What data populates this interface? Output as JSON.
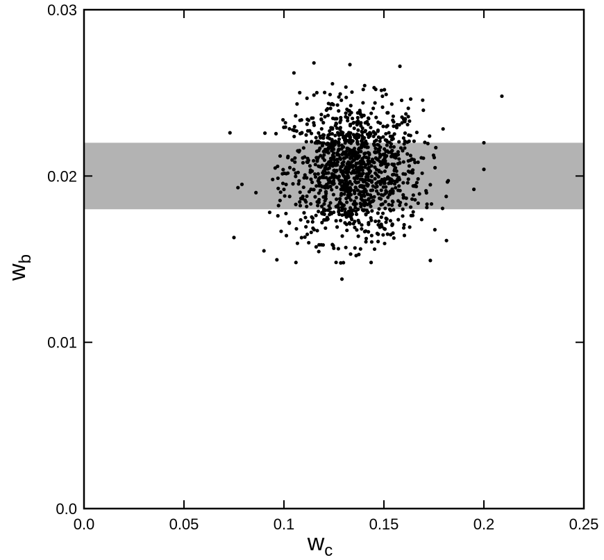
{
  "chart_data": {
    "type": "scatter",
    "title": "",
    "xlabel": {
      "main": "w",
      "sub": "c"
    },
    "ylabel": {
      "main": "w",
      "sub": "b"
    },
    "xlim": [
      0.0,
      0.25
    ],
    "ylim": [
      0.0,
      0.03
    ],
    "xticks": [
      {
        "value": 0.0,
        "label": "0.0"
      },
      {
        "value": 0.05,
        "label": "0.05"
      },
      {
        "value": 0.1,
        "label": "0.1"
      },
      {
        "value": 0.15,
        "label": "0.15"
      },
      {
        "value": 0.2,
        "label": "0.2"
      },
      {
        "value": 0.25,
        "label": "0.25"
      }
    ],
    "yticks": [
      {
        "value": 0.0,
        "label": "0.0"
      },
      {
        "value": 0.01,
        "label": "0.01"
      },
      {
        "value": 0.02,
        "label": "0.02"
      },
      {
        "value": 0.03,
        "label": "0.03"
      }
    ],
    "band": {
      "y_from": 0.018,
      "y_to": 0.022,
      "color": "#b3b3b3"
    },
    "grid": false,
    "point_color": "#000000",
    "cluster": {
      "count": 1200,
      "x_mean": 0.135,
      "x_sd": 0.017,
      "y_mean": 0.0203,
      "y_sd": 0.0021,
      "x_range": [
        0.09,
        0.185
      ],
      "y_range": [
        0.0145,
        0.0268
      ]
    },
    "outliers": [
      {
        "x": 0.073,
        "y": 0.0226
      },
      {
        "x": 0.075,
        "y": 0.0163
      },
      {
        "x": 0.077,
        "y": 0.0193
      },
      {
        "x": 0.079,
        "y": 0.0195
      },
      {
        "x": 0.086,
        "y": 0.019
      },
      {
        "x": 0.09,
        "y": 0.0155
      },
      {
        "x": 0.105,
        "y": 0.0262
      },
      {
        "x": 0.106,
        "y": 0.0148
      },
      {
        "x": 0.115,
        "y": 0.0268
      },
      {
        "x": 0.129,
        "y": 0.0138
      },
      {
        "x": 0.133,
        "y": 0.0267
      },
      {
        "x": 0.158,
        "y": 0.0266
      },
      {
        "x": 0.195,
        "y": 0.0192
      },
      {
        "x": 0.2,
        "y": 0.022
      },
      {
        "x": 0.2,
        "y": 0.0204
      },
      {
        "x": 0.209,
        "y": 0.0248
      }
    ]
  }
}
